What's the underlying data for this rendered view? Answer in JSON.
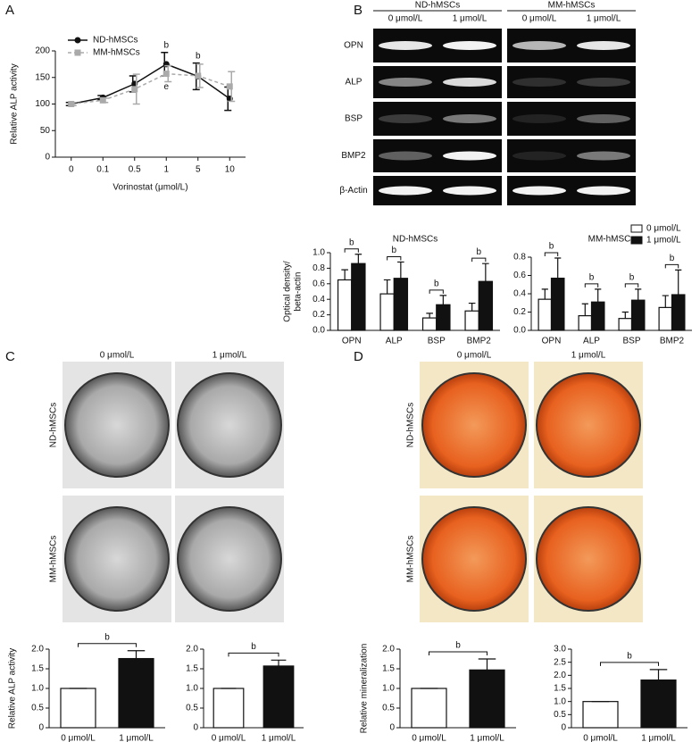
{
  "panel_labels": [
    "A",
    "B",
    "C",
    "D"
  ],
  "gel": {
    "groups": [
      "ND-hMSCs",
      "MM-hMSCs"
    ],
    "columns": [
      "0 μmol/L",
      "1 μmol/L",
      "0 μmol/L",
      "1 μmol/L"
    ],
    "rows": [
      "OPN",
      "ALP",
      "BSP",
      "BMP2",
      "β-Actin"
    ]
  },
  "plates_c": {
    "columns": [
      "0 μmol/L",
      "1 μmol/L"
    ],
    "rows": [
      "ND-hMSCs",
      "MM-hMSCs"
    ]
  },
  "plates_d": {
    "columns": [
      "0 μmol/L",
      "1 μmol/L"
    ],
    "rows": [
      "ND-hMSCs",
      "MM-hMSCs"
    ]
  },
  "chart_data": [
    {
      "type": "line",
      "xlabel": "Vorinostat (μmol/L)",
      "ylabel": "Relative ALP activity",
      "categories": [
        "0",
        "0.1",
        "0.5",
        "1",
        "5",
        "10"
      ],
      "series": [
        {
          "name": "ND-hMSCs",
          "color": "#111111",
          "marker": "circle",
          "dash": false,
          "values": [
            100,
            112,
            138,
            175,
            152,
            110
          ],
          "errors": [
            3,
            4,
            15,
            22,
            25,
            22
          ],
          "annotations": [
            null,
            null,
            null,
            "b",
            "b",
            null
          ]
        },
        {
          "name": "MM-hMSCs",
          "color": "#aaaaaa",
          "marker": "square",
          "dash": true,
          "values": [
            100,
            107,
            128,
            157,
            153,
            133
          ],
          "errors": [
            3,
            4,
            28,
            15,
            22,
            28
          ],
          "annotations": [
            null,
            null,
            null,
            "e",
            null,
            null
          ]
        }
      ],
      "ylim": [
        0,
        200
      ],
      "yticks": [
        0,
        50,
        100,
        150,
        200
      ],
      "legend": "upper left"
    },
    {
      "type": "bar",
      "title": "ND-hMSCs",
      "ylabel": [
        "Optical density/",
        "beta-actin"
      ],
      "categories": [
        "OPN",
        "ALP",
        "BSP",
        "BMP2"
      ],
      "series": [
        {
          "name": "0 μmol/L",
          "color": "#ffffff",
          "values": [
            0.65,
            0.47,
            0.16,
            0.25
          ],
          "errors": [
            0.13,
            0.18,
            0.06,
            0.1
          ]
        },
        {
          "name": "1 μmol/L",
          "color": "#111111",
          "values": [
            0.86,
            0.67,
            0.33,
            0.63
          ],
          "errors": [
            0.12,
            0.21,
            0.12,
            0.23
          ]
        }
      ],
      "annotations": [
        "b",
        "b",
        "b",
        "b"
      ],
      "ylim": [
        0,
        1.0
      ],
      "yticks": [
        {
          "value": 0,
          "label": "0.0"
        },
        0.2,
        0.4,
        0.6,
        0.8,
        {
          "value": 1.0,
          "label": "1.0"
        }
      ]
    },
    {
      "type": "bar",
      "title": "MM-hMSCs",
      "categories": [
        "OPN",
        "ALP",
        "BSP",
        "BMP2"
      ],
      "series": [
        {
          "name": "0 μmol/L",
          "color": "#ffffff",
          "values": [
            0.34,
            0.16,
            0.13,
            0.25
          ],
          "errors": [
            0.11,
            0.13,
            0.07,
            0.13
          ]
        },
        {
          "name": "1 μmol/L",
          "color": "#111111",
          "values": [
            0.57,
            0.31,
            0.33,
            0.39
          ],
          "errors": [
            0.22,
            0.14,
            0.12,
            0.27
          ]
        }
      ],
      "annotations": [
        "b",
        "b",
        "b",
        "b"
      ],
      "ylim": [
        0,
        0.8
      ],
      "yticks": [
        {
          "value": 0,
          "label": "0.0"
        },
        0.2,
        0.4,
        0.6,
        0.8
      ],
      "legend": "upper right"
    },
    {
      "type": "bar",
      "ylabel": "Relative ALP activity",
      "categories": [
        "0 μmol/L",
        "1 μmol/L"
      ],
      "values": [
        1.0,
        1.76
      ],
      "errors": [
        0,
        0.2
      ],
      "colors": [
        "#ffffff",
        "#111111"
      ],
      "annotation": "b",
      "ylim": [
        0,
        2.0
      ],
      "yticks": [
        0,
        0.5,
        {
          "value": 1.0,
          "label": "1.0"
        },
        1.5,
        {
          "value": 2.0,
          "label": "2.0"
        }
      ]
    },
    {
      "type": "bar",
      "categories": [
        "0 μmol/L",
        "1 μmol/L"
      ],
      "values": [
        1.0,
        1.57
      ],
      "errors": [
        0,
        0.15
      ],
      "colors": [
        "#ffffff",
        "#111111"
      ],
      "annotation": "b",
      "ylim": [
        0,
        2.0
      ],
      "yticks": [
        0,
        0.5,
        {
          "value": 1.0,
          "label": "1.0"
        },
        1.5,
        {
          "value": 2.0,
          "label": "2.0"
        }
      ]
    },
    {
      "type": "bar",
      "ylabel": "Relative mineralization",
      "categories": [
        "0 μmol/L",
        "1 μmol/L"
      ],
      "values": [
        1.0,
        1.47
      ],
      "errors": [
        0,
        0.28
      ],
      "colors": [
        "#ffffff",
        "#111111"
      ],
      "annotation": "b",
      "ylim": [
        0,
        2.0
      ],
      "yticks": [
        0,
        0.5,
        {
          "value": 1.0,
          "label": "1.0"
        },
        1.5,
        {
          "value": 2.0,
          "label": "2.0"
        }
      ]
    },
    {
      "type": "bar",
      "categories": [
        "0 μmol/L",
        "1 μmol/L"
      ],
      "values": [
        1.0,
        1.82
      ],
      "errors": [
        0,
        0.4
      ],
      "colors": [
        "#ffffff",
        "#111111"
      ],
      "annotation": "b",
      "ylim": [
        0,
        3.0
      ],
      "yticks": [
        0,
        0.5,
        {
          "value": 1.0,
          "label": "1.0"
        },
        1.5,
        {
          "value": 2.0,
          "label": "2.0"
        },
        2.5,
        {
          "value": 3.0,
          "label": "3.0"
        }
      ]
    }
  ]
}
